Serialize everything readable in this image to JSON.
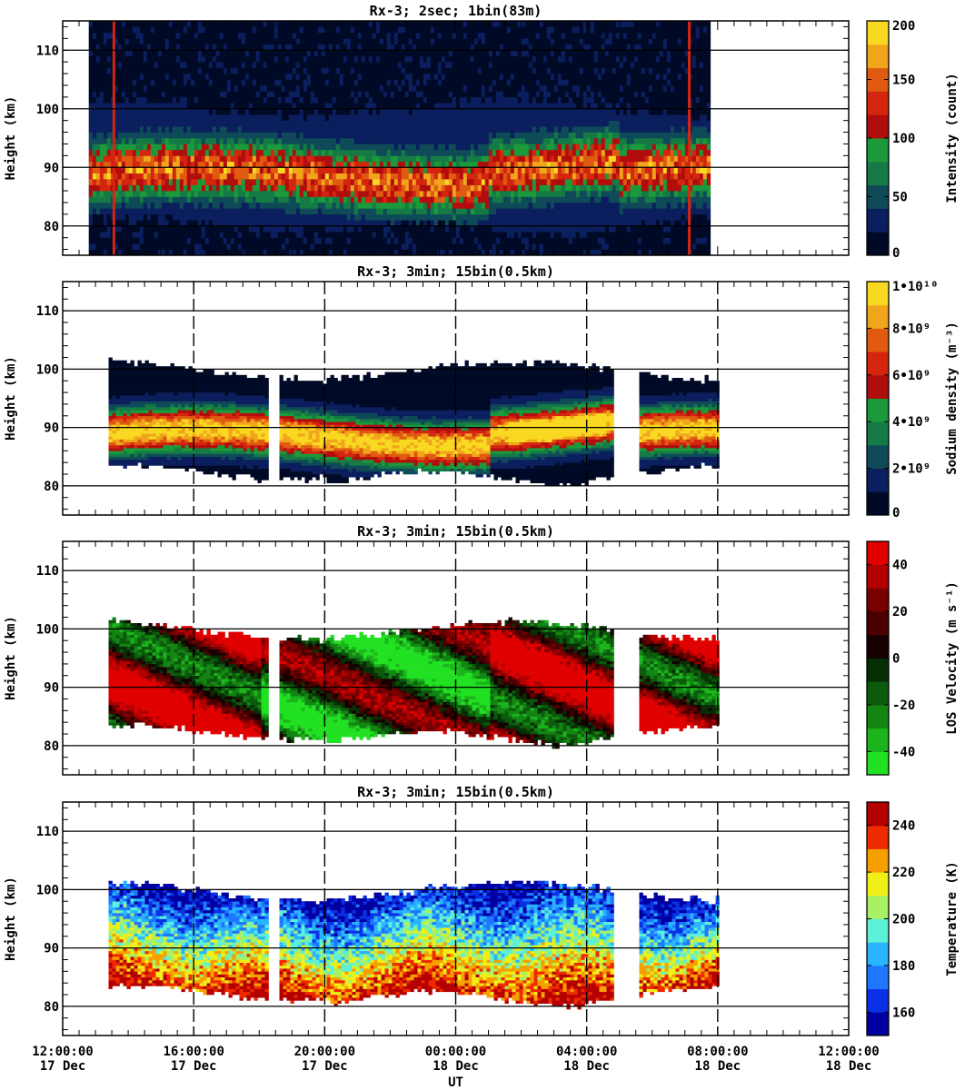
{
  "chart_data": {
    "type": "heatmap",
    "x_tick_labels": [
      {
        "time": "12:00:00",
        "date": "17 Dec"
      },
      {
        "time": "16:00:00",
        "date": "17 Dec"
      },
      {
        "time": "20:00:00",
        "date": "17 Dec"
      },
      {
        "time": "00:00:00",
        "date": "18 Dec"
      },
      {
        "time": "04:00:00",
        "date": "18 Dec"
      },
      {
        "time": "08:00:00",
        "date": "18 Dec"
      },
      {
        "time": "12:00:00",
        "date": "18 Dec"
      }
    ],
    "xlabel": "UT",
    "x_hours_since_12UT_17Dec": [
      0,
      4,
      8,
      12,
      16,
      20,
      24
    ],
    "ylim": [
      75,
      115
    ],
    "ylabel": "Height (km)",
    "y_ticks": [
      "80",
      "90",
      "100",
      "110"
    ],
    "panels": [
      {
        "title": "Rx-3;  2sec; 1bin(83m)",
        "quantity": "Intensity",
        "colorbar_label": "Intensity (count)",
        "colorbar_ticks": [
          "0",
          "50",
          "100",
          "150",
          "200"
        ],
        "crange": [
          0,
          200
        ],
        "colors": [
          "#000a26",
          "#0b1e5e",
          "#0e4a58",
          "#157a45",
          "#1a9a3a",
          "#b20d0d",
          "#d4250f",
          "#e05a12",
          "#f0a51b",
          "#f8d820"
        ],
        "data_hours": [
          0.8,
          19.7
        ],
        "layer": {
          "peak_km": 88,
          "bottom_km": 83,
          "top_km": 98
        },
        "gaps_hours": [
          6.5
        ]
      },
      {
        "title": "Rx-3; 3min; 15bin(0.5km)",
        "quantity": "Sodium density",
        "colorbar_label": "Sodium density (m⁻³)",
        "colorbar_ticks": [
          "0",
          "2•10⁹",
          "4•10⁹",
          "6•10⁹",
          "8•10⁹",
          "1•10¹⁰"
        ],
        "crange": [
          0,
          10000000000
        ],
        "colors": [
          "#000a26",
          "#0b1e5e",
          "#0e4a58",
          "#157a45",
          "#1a9a3a",
          "#b20d0d",
          "#d4250f",
          "#e05a12",
          "#f0a51b",
          "#f8d820"
        ],
        "data_hours": [
          1.4,
          19.95
        ],
        "layer": {
          "peak_km": 88,
          "bottom_km": 82,
          "top_km": 101
        },
        "gaps_hours": [
          6.25,
          6.6,
          16.75,
          17.55
        ]
      },
      {
        "title": "Rx-3; 3min; 15bin(0.5km)",
        "quantity": "LOS Velocity",
        "colorbar_label": "LOS Velocity (m s⁻¹)",
        "colorbar_ticks": [
          "-40",
          "-20",
          "0",
          "20",
          "40"
        ],
        "crange": [
          -50,
          50
        ],
        "colors": [
          "#22e022",
          "#1cb41c",
          "#138513",
          "#0c5a0c",
          "#062f06",
          "#170000",
          "#4a0000",
          "#7a0000",
          "#b00000",
          "#e00000"
        ],
        "data_hours": [
          1.4,
          19.95
        ],
        "layer": {
          "bottom_km": 82,
          "top_km": 101
        },
        "gaps_hours": [
          6.25,
          6.6,
          16.75,
          17.55
        ]
      },
      {
        "title": "Rx-3; 3min; 15bin(0.5km)",
        "quantity": "Temperature",
        "colorbar_label": "Temperature (K)",
        "colorbar_ticks": [
          "160",
          "180",
          "200",
          "220",
          "240"
        ],
        "crange": [
          150,
          250
        ],
        "colors": [
          "#0000a0",
          "#0a30e6",
          "#1e78ff",
          "#29b4ff",
          "#5cf0d8",
          "#a8f064",
          "#f0f018",
          "#f6a000",
          "#ee2a00",
          "#b40000"
        ],
        "data_hours": [
          1.4,
          19.95
        ],
        "layer": {
          "bottom_km": 82,
          "top_km": 101
        },
        "gaps_hours": [
          6.25,
          6.6,
          16.75,
          17.55
        ]
      }
    ]
  }
}
